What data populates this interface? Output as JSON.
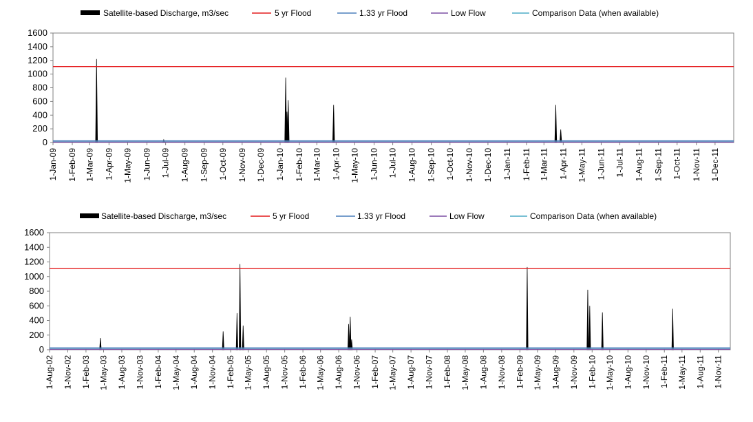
{
  "legend": {
    "discharge": "Satellite-based Discharge, m3/sec",
    "flood5": "5 yr Flood",
    "flood133": "1.33 yr Flood",
    "lowflow": "Low Flow",
    "comparison": "Comparison Data (when available)"
  },
  "colors": {
    "discharge": "#000000",
    "flood5": "#e41a1c",
    "flood133": "#4a7ebb",
    "lowflow": "#7b4ea3",
    "comparison": "#4bacc6",
    "axis": "#808080"
  },
  "chart_data": [
    {
      "type": "area",
      "ylim": [
        0,
        1600
      ],
      "yticks": [
        "0",
        "200",
        "400",
        "600",
        "800",
        "1000",
        "1200",
        "1400",
        "1600"
      ],
      "x_range": [
        "2009-01-01",
        "2011-12-31"
      ],
      "x_tick_labels": [
        "1-Jan-09",
        "1-Feb-09",
        "1-Mar-09",
        "1-Apr-09",
        "1-May-09",
        "1-Jun-09",
        "1-Jul-09",
        "1-Aug-09",
        "1-Sep-09",
        "1-Oct-09",
        "1-Nov-09",
        "1-Dec-09",
        "1-Jan-10",
        "1-Feb-10",
        "1-Mar-10",
        "1-Apr-10",
        "1-May-10",
        "1-Jun-10",
        "1-Jul-10",
        "1-Aug-10",
        "1-Sep-10",
        "1-Oct-10",
        "1-Nov-10",
        "1-Dec-10",
        "1-Jan-11",
        "1-Feb-11",
        "1-Mar-11",
        "1-Apr-11",
        "1-May-11",
        "1-Jun-11",
        "1-Jul-11",
        "1-Aug-11",
        "1-Sep-11",
        "1-Oct-11",
        "1-Nov-11",
        "1-Dec-11"
      ],
      "x_tick_dates": [
        "2009-01-01",
        "2009-02-01",
        "2009-03-01",
        "2009-04-01",
        "2009-05-01",
        "2009-06-01",
        "2009-07-01",
        "2009-08-01",
        "2009-09-01",
        "2009-10-01",
        "2009-11-01",
        "2009-12-01",
        "2010-01-01",
        "2010-02-01",
        "2010-03-01",
        "2010-04-01",
        "2010-05-01",
        "2010-06-01",
        "2010-07-01",
        "2010-08-01",
        "2010-09-01",
        "2010-10-01",
        "2010-11-01",
        "2010-12-01",
        "2011-01-01",
        "2011-02-01",
        "2011-03-01",
        "2011-04-01",
        "2011-05-01",
        "2011-06-01",
        "2011-07-01",
        "2011-08-01",
        "2011-09-01",
        "2011-10-01",
        "2011-11-01",
        "2011-12-01"
      ],
      "flood5": 1110,
      "flood133": 25,
      "lowflow": 5,
      "comparison": 20,
      "discharge_peaks": [
        {
          "date": "2009-03-12",
          "value": 1220
        },
        {
          "date": "2009-06-28",
          "value": 40
        },
        {
          "date": "2010-01-10",
          "value": 950
        },
        {
          "date": "2010-01-12",
          "value": 450
        },
        {
          "date": "2010-01-14",
          "value": 620
        },
        {
          "date": "2010-03-28",
          "value": 550
        },
        {
          "date": "2011-03-20",
          "value": 550
        },
        {
          "date": "2011-03-28",
          "value": 190
        }
      ]
    },
    {
      "type": "area",
      "ylim": [
        0,
        1600
      ],
      "yticks": [
        "0",
        "200",
        "400",
        "600",
        "800",
        "1000",
        "1200",
        "1400",
        "1600"
      ],
      "x_range": [
        "2002-08-01",
        "2011-12-31"
      ],
      "x_tick_labels": [
        "1-Aug-02",
        "1-Nov-02",
        "1-Feb-03",
        "1-May-03",
        "1-Aug-03",
        "1-Nov-03",
        "1-Feb-04",
        "1-May-04",
        "1-Aug-04",
        "1-Nov-04",
        "1-Feb-05",
        "1-May-05",
        "1-Aug-05",
        "1-Nov-05",
        "1-Feb-06",
        "1-May-06",
        "1-Aug-06",
        "1-Nov-06",
        "1-Feb-07",
        "1-May-07",
        "1-Aug-07",
        "1-Nov-07",
        "1-Feb-08",
        "1-May-08",
        "1-Aug-08",
        "1-Nov-08",
        "1-Feb-09",
        "1-May-09",
        "1-Aug-09",
        "1-Nov-09",
        "1-Feb-10",
        "1-May-10",
        "1-Aug-10",
        "1-Nov-10",
        "1-Feb-11",
        "1-May-11",
        "1-Aug-11",
        "1-Nov-11"
      ],
      "x_tick_dates": [
        "2002-08-01",
        "2002-11-01",
        "2003-02-01",
        "2003-05-01",
        "2003-08-01",
        "2003-11-01",
        "2004-02-01",
        "2004-05-01",
        "2004-08-01",
        "2004-11-01",
        "2005-02-01",
        "2005-05-01",
        "2005-08-01",
        "2005-11-01",
        "2006-02-01",
        "2006-05-01",
        "2006-08-01",
        "2006-11-01",
        "2007-02-01",
        "2007-05-01",
        "2007-08-01",
        "2007-11-01",
        "2008-02-01",
        "2008-05-01",
        "2008-08-01",
        "2008-11-01",
        "2009-02-01",
        "2009-05-01",
        "2009-08-01",
        "2009-11-01",
        "2010-02-01",
        "2010-05-01",
        "2010-08-01",
        "2010-11-01",
        "2011-02-01",
        "2011-05-01",
        "2011-08-01",
        "2011-11-01"
      ],
      "flood5": 1110,
      "flood133": 25,
      "lowflow": 5,
      "comparison": 20,
      "discharge_peaks": [
        {
          "date": "2003-04-15",
          "value": 160
        },
        {
          "date": "2004-12-25",
          "value": 250
        },
        {
          "date": "2005-03-05",
          "value": 500
        },
        {
          "date": "2005-03-20",
          "value": 1170
        },
        {
          "date": "2005-04-05",
          "value": 330
        },
        {
          "date": "2006-09-20",
          "value": 350
        },
        {
          "date": "2006-09-28",
          "value": 450
        },
        {
          "date": "2006-10-05",
          "value": 140
        },
        {
          "date": "2009-03-10",
          "value": 1130
        },
        {
          "date": "2010-01-10",
          "value": 820
        },
        {
          "date": "2010-01-20",
          "value": 600
        },
        {
          "date": "2010-03-25",
          "value": 510
        },
        {
          "date": "2011-03-15",
          "value": 560
        }
      ]
    }
  ]
}
